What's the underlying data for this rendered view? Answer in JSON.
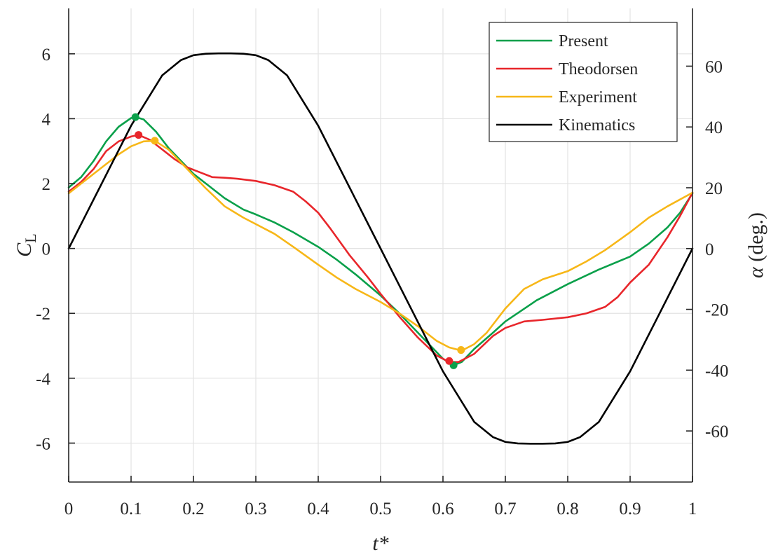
{
  "chart_data": {
    "type": "line",
    "title": "",
    "xlabel": "t*",
    "ylabel": {
      "main": "C",
      "sub": "L"
    },
    "y2label": {
      "symbol": "α",
      "rest": " (deg.)"
    },
    "xlim": [
      0,
      1
    ],
    "ylim": [
      -7.2,
      7.4
    ],
    "y2lim": [
      -76.8,
      79.0
    ],
    "grid": true,
    "legend_position": "top-right",
    "x_ticks": [
      0,
      0.1,
      0.2,
      0.3,
      0.4,
      0.5,
      0.6,
      0.7,
      0.8,
      0.9,
      1
    ],
    "x_tick_labels": [
      "0",
      "0.1",
      "0.2",
      "0.3",
      "0.4",
      "0.5",
      "0.6",
      "0.7",
      "0.8",
      "0.9",
      "1"
    ],
    "y_ticks": [
      -6,
      -4,
      -2,
      0,
      2,
      4,
      6
    ],
    "y_tick_labels": [
      "-6",
      "-4",
      "-2",
      "0",
      "2",
      "4",
      "6"
    ],
    "y2_ticks": [
      -60,
      -40,
      -20,
      0,
      20,
      40,
      60
    ],
    "y2_tick_labels": [
      "-60",
      "-40",
      "-20",
      "0",
      "20",
      "40",
      "60"
    ],
    "series": [
      {
        "name": "Present",
        "axis": "left",
        "color": "#0aa04a",
        "x": [
          0,
          0.02,
          0.04,
          0.06,
          0.08,
          0.1,
          0.107,
          0.12,
          0.14,
          0.16,
          0.18,
          0.2,
          0.22,
          0.25,
          0.28,
          0.3,
          0.33,
          0.36,
          0.4,
          0.43,
          0.46,
          0.5,
          0.53,
          0.56,
          0.59,
          0.6,
          0.617,
          0.63,
          0.65,
          0.68,
          0.7,
          0.75,
          0.8,
          0.85,
          0.9,
          0.93,
          0.96,
          0.98,
          1
        ],
        "y": [
          1.88,
          2.2,
          2.7,
          3.3,
          3.75,
          4.02,
          4.05,
          3.98,
          3.6,
          3.1,
          2.7,
          2.3,
          2.0,
          1.55,
          1.2,
          1.05,
          0.8,
          0.5,
          0.05,
          -0.35,
          -0.8,
          -1.45,
          -2.0,
          -2.6,
          -3.2,
          -3.4,
          -3.6,
          -3.5,
          -3.1,
          -2.6,
          -2.25,
          -1.6,
          -1.1,
          -0.65,
          -0.25,
          0.15,
          0.65,
          1.1,
          1.7
        ]
      },
      {
        "name": "Theodorsen",
        "axis": "left",
        "color": "#e8262b",
        "x": [
          0,
          0.02,
          0.04,
          0.06,
          0.08,
          0.1,
          0.112,
          0.13,
          0.15,
          0.17,
          0.19,
          0.21,
          0.23,
          0.25,
          0.27,
          0.3,
          0.33,
          0.36,
          0.38,
          0.4,
          0.42,
          0.45,
          0.48,
          0.5,
          0.53,
          0.56,
          0.59,
          0.61,
          0.625,
          0.65,
          0.68,
          0.7,
          0.73,
          0.76,
          0.8,
          0.83,
          0.86,
          0.88,
          0.9,
          0.93,
          0.96,
          0.98,
          1
        ],
        "y": [
          1.75,
          2.05,
          2.45,
          3.0,
          3.3,
          3.45,
          3.5,
          3.35,
          3.05,
          2.75,
          2.5,
          2.35,
          2.2,
          2.18,
          2.15,
          2.08,
          1.95,
          1.75,
          1.45,
          1.1,
          0.6,
          -0.2,
          -0.9,
          -1.4,
          -2.1,
          -2.75,
          -3.3,
          -3.5,
          -3.5,
          -3.25,
          -2.7,
          -2.45,
          -2.25,
          -2.2,
          -2.12,
          -2.0,
          -1.8,
          -1.5,
          -1.05,
          -0.5,
          0.35,
          1.0,
          1.72
        ]
      },
      {
        "name": "Experiment",
        "axis": "left",
        "color": "#f7b718",
        "x": [
          0,
          0.02,
          0.04,
          0.06,
          0.08,
          0.1,
          0.12,
          0.138,
          0.16,
          0.18,
          0.2,
          0.22,
          0.25,
          0.28,
          0.3,
          0.33,
          0.36,
          0.4,
          0.43,
          0.46,
          0.5,
          0.53,
          0.56,
          0.59,
          0.61,
          0.63,
          0.65,
          0.67,
          0.7,
          0.73,
          0.76,
          0.8,
          0.83,
          0.86,
          0.9,
          0.93,
          0.96,
          1
        ],
        "y": [
          1.7,
          2.0,
          2.3,
          2.6,
          2.9,
          3.15,
          3.3,
          3.32,
          3.05,
          2.65,
          2.25,
          1.85,
          1.3,
          0.95,
          0.75,
          0.45,
          0.05,
          -0.5,
          -0.9,
          -1.25,
          -1.65,
          -2.0,
          -2.4,
          -2.85,
          -3.05,
          -3.15,
          -2.95,
          -2.6,
          -1.85,
          -1.25,
          -0.95,
          -0.7,
          -0.4,
          -0.05,
          0.5,
          0.95,
          1.3,
          1.72
        ]
      },
      {
        "name": "Kinematics",
        "axis": "right",
        "color": "#000000",
        "x": [
          0,
          0.05,
          0.1,
          0.15,
          0.18,
          0.2,
          0.22,
          0.24,
          0.25,
          0.26,
          0.28,
          0.3,
          0.32,
          0.35,
          0.4,
          0.45,
          0.5,
          0.55,
          0.6,
          0.65,
          0.68,
          0.7,
          0.72,
          0.74,
          0.75,
          0.76,
          0.78,
          0.8,
          0.82,
          0.85,
          0.9,
          0.95,
          1
        ],
        "y": [
          0,
          20.2,
          40.4,
          57.0,
          62.0,
          63.6,
          64.1,
          64.2,
          64.2,
          64.2,
          64.1,
          63.6,
          62.0,
          57.0,
          40.4,
          20.2,
          0,
          -20.2,
          -40.4,
          -57.0,
          -62.0,
          -63.6,
          -64.1,
          -64.2,
          -64.2,
          -64.2,
          -64.1,
          -63.6,
          -62.0,
          -57.0,
          -40.4,
          -20.2,
          0
        ]
      }
    ],
    "markers": [
      {
        "series": "Present",
        "x": 0.107,
        "y": 4.05,
        "color": "#0aa04a"
      },
      {
        "series": "Present",
        "x": 0.617,
        "y": -3.6,
        "color": "#0aa04a"
      },
      {
        "series": "Theodorsen",
        "x": 0.112,
        "y": 3.5,
        "color": "#e8262b"
      },
      {
        "series": "Theodorsen",
        "x": 0.61,
        "y": -3.47,
        "color": "#e8262b"
      },
      {
        "series": "Experiment",
        "x": 0.138,
        "y": 3.32,
        "color": "#f7b718"
      },
      {
        "series": "Experiment",
        "x": 0.629,
        "y": -3.13,
        "color": "#f7b718"
      }
    ]
  }
}
